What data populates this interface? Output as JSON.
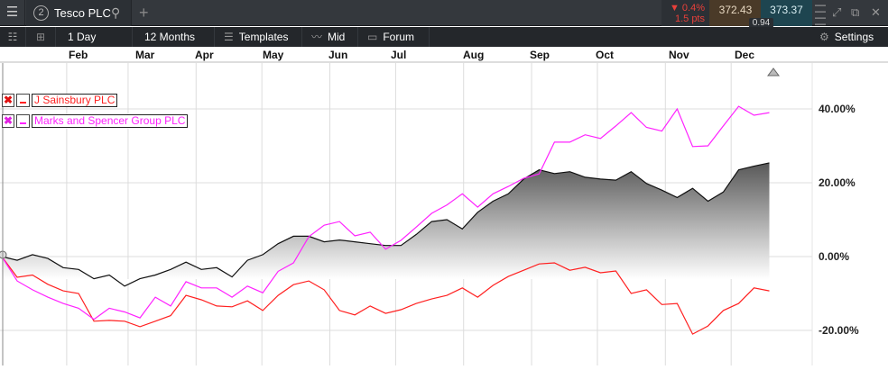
{
  "window": {
    "menu_icon": "hamburger-icon",
    "tab_number": "2",
    "tab_title": "Tesco PLC",
    "search_icon": "search-icon",
    "add_tab_icon": "plus-icon"
  },
  "quote": {
    "change_pct": "▼ 0.4%",
    "change_pts": "1.5 pts",
    "bid": "372.43",
    "ask": "373.37",
    "spread": "0.94",
    "down_color": "#e8403a"
  },
  "toolbar": {
    "interval": "1 Day",
    "range": "12 Months",
    "templates": "Templates",
    "price_type": "Mid",
    "forum": "Forum",
    "settings": "Settings"
  },
  "chart_data": {
    "type": "area",
    "x_tick_labels": [
      "Feb",
      "Mar",
      "Apr",
      "May",
      "Jun",
      "Jul",
      "Aug",
      "Sep",
      "Oct",
      "Nov",
      "Dec"
    ],
    "y_tick_labels": [
      "40.00%",
      "20.00%",
      "0.00%",
      "-20.00%"
    ],
    "ylim": [
      -26,
      52
    ],
    "grid": true,
    "legend": "top-left",
    "dates": [
      "Jan 02",
      "Jan 09",
      "Jan 16",
      "Jan 23",
      "Jan 30",
      "Feb 06",
      "Feb 13",
      "Feb 20",
      "Feb 27",
      "Mar 06",
      "Mar 13",
      "Mar 20",
      "Mar 27",
      "Apr 03",
      "Apr 10",
      "Apr 17",
      "Apr 24",
      "May 01",
      "May 08",
      "May 15",
      "May 22",
      "May 29",
      "Jun 05",
      "Jun 12",
      "Jun 19",
      "Jun 26",
      "Jul 03",
      "Jul 10",
      "Jul 17",
      "Jul 24",
      "Jul 31",
      "Aug 07",
      "Aug 14",
      "Aug 21",
      "Aug 28",
      "Sep 04",
      "Sep 11",
      "Sep 18",
      "Sep 25",
      "Oct 02",
      "Oct 09",
      "Oct 16",
      "Oct 23",
      "Oct 30",
      "Nov 06",
      "Nov 13",
      "Nov 20",
      "Nov 27",
      "Dec 04",
      "Dec 11",
      "Dec 18"
    ],
    "series": [
      {
        "name": "Tesco PLC",
        "color": "#111111",
        "style": "area",
        "values": [
          0,
          -1,
          0.5,
          -0.5,
          -3,
          -3.5,
          -6,
          -5,
          -8,
          -6,
          -5,
          -3.5,
          -1.5,
          -3.5,
          -3,
          -5.5,
          -1,
          0.5,
          3.5,
          5.5,
          5.5,
          4,
          4.5,
          4,
          3.5,
          3,
          3,
          6,
          9.5,
          10,
          7.5,
          12,
          15,
          17,
          21,
          23.5,
          22.5,
          23,
          21.5,
          21,
          20.7,
          23,
          19.8,
          18,
          16,
          18.5,
          15,
          17.5,
          23.5,
          24.5,
          25.4
        ]
      },
      {
        "name": "J Sainsbury PLC",
        "color": "#ff2020",
        "style": "line",
        "values": [
          0,
          -5.6,
          -5,
          -7.5,
          -9.3,
          -10,
          -17.5,
          -17.3,
          -17.5,
          -19,
          -17.5,
          -16,
          -10.5,
          -11.7,
          -13.4,
          -13.6,
          -12,
          -14.6,
          -10.5,
          -7.6,
          -6.6,
          -9,
          -14.6,
          -15.8,
          -13.4,
          -15.4,
          -14.4,
          -12.7,
          -11.5,
          -10.5,
          -8.5,
          -11,
          -7.8,
          -5.4,
          -3.7,
          -2,
          -1.7,
          -3.7,
          -2.9,
          -4.4,
          -3.9,
          -10,
          -9,
          -13,
          -12.7,
          -21,
          -18.8,
          -14.6,
          -12.7,
          -8.5,
          -9.3
        ]
      },
      {
        "name": "Marks and Spencer Group PLC",
        "color": "#ff22ff",
        "style": "line",
        "values": [
          0,
          -6.6,
          -9,
          -11,
          -12.7,
          -14,
          -17,
          -14,
          -15,
          -16.6,
          -11,
          -13.4,
          -6.8,
          -8.5,
          -8.5,
          -11,
          -8,
          -9.8,
          -4,
          -1.7,
          5.4,
          8.5,
          9.5,
          5.6,
          6.6,
          2,
          4.4,
          8,
          11.7,
          14,
          17,
          13.4,
          17,
          19,
          21.2,
          22.4,
          31,
          31,
          33,
          32,
          35.4,
          39,
          35,
          34,
          40,
          29.8,
          30,
          35.4,
          40.7,
          38.3,
          39
        ]
      }
    ]
  },
  "legend": [
    {
      "remove_icon": "close-x-icon",
      "label": "J Sainsbury PLC",
      "color": "#ff2020"
    },
    {
      "remove_icon": "close-x-icon",
      "label": "Marks and Spencer Group PLC",
      "color": "#ff22ff"
    }
  ]
}
